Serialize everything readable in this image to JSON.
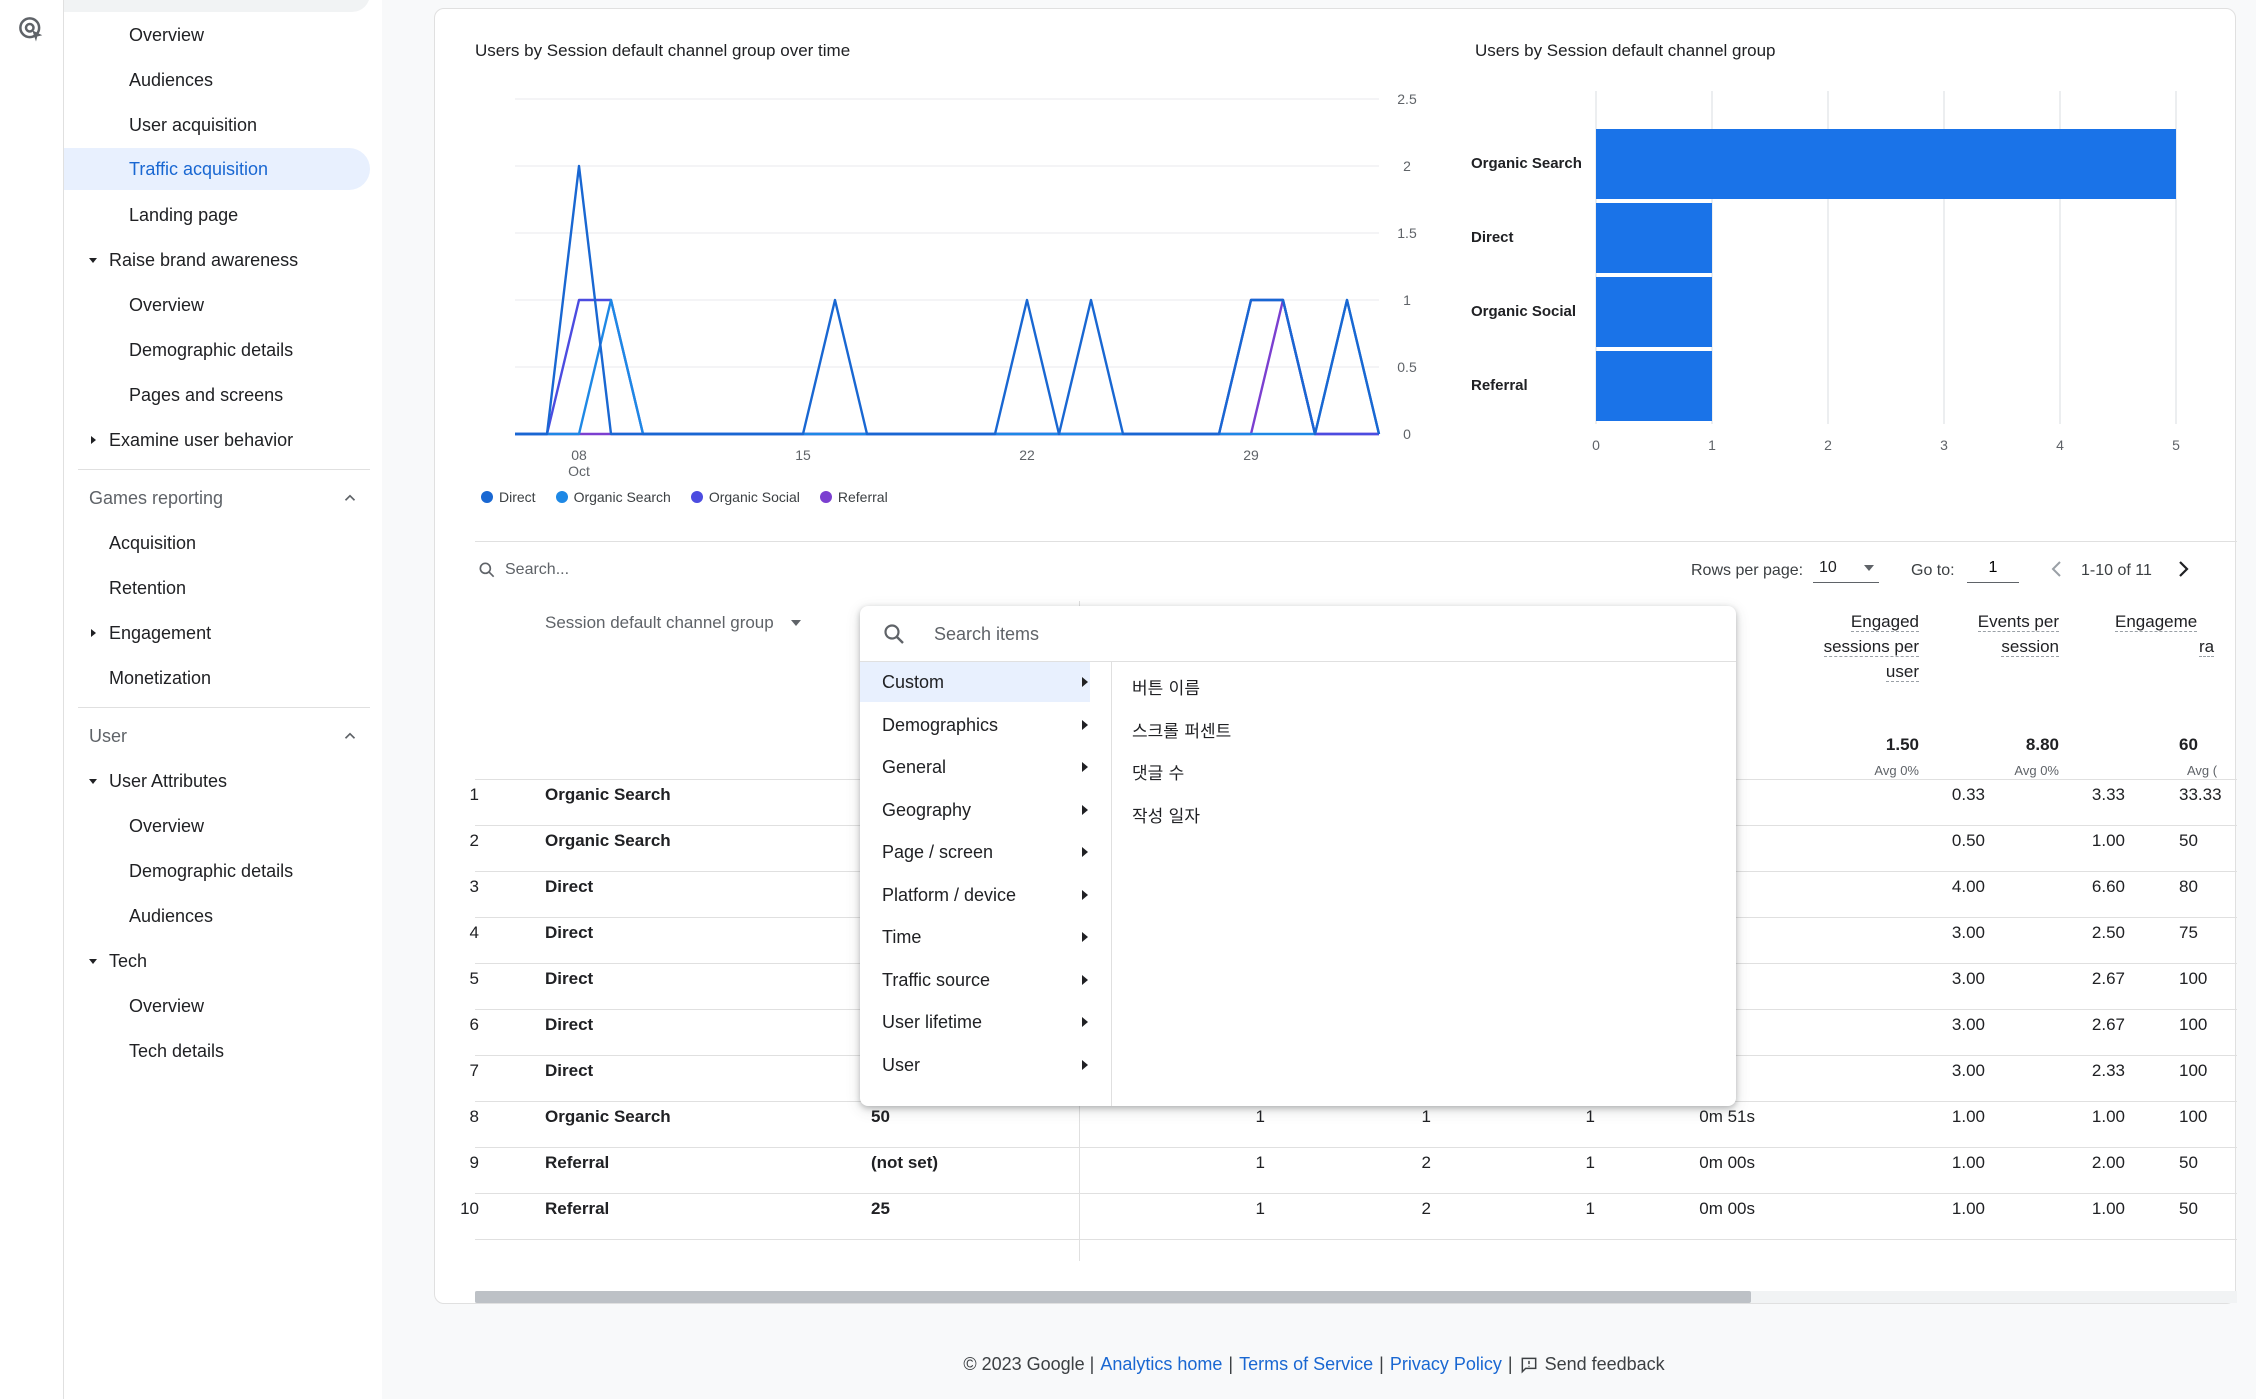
{
  "sidebar": {
    "items": [
      {
        "label": "Overview"
      },
      {
        "label": "Audiences"
      },
      {
        "label": "User acquisition"
      },
      {
        "label": "Traffic acquisition"
      },
      {
        "label": "Landing page"
      },
      {
        "label": "Raise brand awareness"
      },
      {
        "label": "Overview"
      },
      {
        "label": "Demographic details"
      },
      {
        "label": "Pages and screens"
      },
      {
        "label": "Examine user behavior"
      },
      {
        "label": "Acquisition"
      },
      {
        "label": "Retention"
      },
      {
        "label": "Engagement"
      },
      {
        "label": "Monetization"
      },
      {
        "label": "User Attributes"
      },
      {
        "label": "Overview"
      },
      {
        "label": "Demographic details"
      },
      {
        "label": "Audiences"
      },
      {
        "label": "Tech"
      },
      {
        "label": "Overview"
      },
      {
        "label": "Tech details"
      }
    ],
    "sections": {
      "games": "Games reporting",
      "user": "User"
    }
  },
  "line_chart": {
    "title": "Users by Session default channel group over time",
    "y_ticks": [
      "2.5",
      "2",
      "1.5",
      "1",
      "0.5",
      "0"
    ],
    "x_ticks": [
      {
        "day": "08",
        "month": "Oct"
      },
      {
        "day": "15",
        "month": ""
      },
      {
        "day": "22",
        "month": ""
      },
      {
        "day": "29",
        "month": ""
      }
    ],
    "legend": [
      "Direct",
      "Organic Search",
      "Organic Social",
      "Referral"
    ]
  },
  "bar_chart": {
    "title": "Users by Session default channel group",
    "categories": [
      "Organic Search",
      "Direct",
      "Organic Social",
      "Referral"
    ],
    "x_ticks": [
      "0",
      "1",
      "2",
      "3",
      "4",
      "5"
    ]
  },
  "chart_data": [
    {
      "type": "line",
      "title": "Users by Session default channel group over time",
      "x": [
        "Oct 6",
        "Oct 7",
        "Oct 8",
        "Oct 9",
        "Oct 10",
        "Oct 11",
        "Oct 12",
        "Oct 13",
        "Oct 14",
        "Oct 15",
        "Oct 16",
        "Oct 17",
        "Oct 18",
        "Oct 19",
        "Oct 20",
        "Oct 21",
        "Oct 22",
        "Oct 23",
        "Oct 24",
        "Oct 25",
        "Oct 26",
        "Oct 27",
        "Oct 28",
        "Oct 29",
        "Oct 30",
        "Oct 31",
        "Nov 1",
        "Nov 2"
      ],
      "series": [
        {
          "name": "Direct",
          "values": [
            0,
            0,
            2,
            0,
            0,
            0,
            0,
            0,
            0,
            0,
            1,
            0,
            0,
            0,
            0,
            0,
            1,
            0,
            1,
            0,
            0,
            0,
            0,
            1,
            1,
            0,
            1,
            0
          ]
        },
        {
          "name": "Organic Search",
          "values": [
            0,
            0,
            0,
            1,
            0,
            0,
            0,
            0,
            0,
            0,
            0,
            0,
            0,
            0,
            0,
            0,
            0,
            0,
            0,
            0,
            0,
            0,
            0,
            0,
            0,
            0,
            1,
            0
          ]
        },
        {
          "name": "Organic Social",
          "values": [
            0,
            0,
            1,
            1,
            0,
            0,
            0,
            0,
            0,
            0,
            0,
            0,
            0,
            0,
            0,
            0,
            0,
            0,
            0,
            0,
            0,
            0,
            0,
            1,
            1,
            0,
            0,
            0
          ]
        },
        {
          "name": "Referral",
          "values": [
            0,
            0,
            0,
            0,
            0,
            0,
            0,
            0,
            0,
            0,
            0,
            0,
            0,
            0,
            0,
            0,
            0,
            0,
            0,
            0,
            0,
            0,
            0,
            0,
            1,
            0,
            0,
            0
          ]
        }
      ],
      "ylim": [
        0,
        2.5
      ],
      "colors": {
        "Direct": "#1967d2",
        "Organic Search": "#1e88e5",
        "Organic Social": "#4c4ce0",
        "Referral": "#7b3fd0"
      }
    },
    {
      "type": "bar",
      "title": "Users by Session default channel group",
      "categories": [
        "Organic Search",
        "Direct",
        "Organic Social",
        "Referral"
      ],
      "values": [
        5,
        1,
        1,
        1
      ],
      "xlim": [
        0,
        5
      ],
      "color": "#1a73e8"
    }
  ],
  "toolbar": {
    "search_placeholder": "Search...",
    "rows_per_page_label": "Rows per page:",
    "rows_per_page_value": "10",
    "goto_label": "Go to:",
    "goto_value": "1",
    "pager_text": "1-10 of 11"
  },
  "table": {
    "dimension_header": "Session default channel group",
    "metric_headers": [
      {
        "lines": [
          "Engaged",
          "sessions per",
          "user"
        ],
        "total": "1.50",
        "avg": "Avg 0%"
      },
      {
        "lines": [
          "Events per",
          "session"
        ],
        "total": "8.80",
        "avg": "Avg 0%"
      },
      {
        "lines": [
          "Engageme",
          "ra"
        ],
        "total": "60",
        "avg": "Avg ("
      }
    ],
    "rows": [
      {
        "num": "1",
        "channel": "Organic Search",
        "c1": "",
        "m1": "",
        "m2": "",
        "m3": "",
        "m4": "",
        "eps": "0.33",
        "evs": "3.33",
        "er": "33.33"
      },
      {
        "num": "2",
        "channel": "Organic Search",
        "c1": "",
        "m1": "",
        "m2": "",
        "m3": "",
        "m4": "",
        "eps": "0.50",
        "evs": "1.00",
        "er": "50"
      },
      {
        "num": "3",
        "channel": "Direct",
        "c1": "",
        "m1": "",
        "m2": "",
        "m3": "",
        "m4": "",
        "eps": "4.00",
        "evs": "6.60",
        "er": "80"
      },
      {
        "num": "4",
        "channel": "Direct",
        "c1": "",
        "m1": "",
        "m2": "",
        "m3": "",
        "m4": "",
        "eps": "3.00",
        "evs": "2.50",
        "er": "75"
      },
      {
        "num": "5",
        "channel": "Direct",
        "c1": "",
        "m1": "",
        "m2": "",
        "m3": "",
        "m4": "",
        "eps": "3.00",
        "evs": "2.67",
        "er": "100"
      },
      {
        "num": "6",
        "channel": "Direct",
        "c1": "",
        "m1": "",
        "m2": "",
        "m3": "",
        "m4": "",
        "eps": "3.00",
        "evs": "2.67",
        "er": "100"
      },
      {
        "num": "7",
        "channel": "Direct",
        "c1": "",
        "m1": "",
        "m2": "",
        "m3": "",
        "m4": "",
        "eps": "3.00",
        "evs": "2.33",
        "er": "100"
      },
      {
        "num": "8",
        "channel": "Organic Search",
        "c1": "50",
        "m1": "1",
        "m2": "1",
        "m3": "1",
        "m4": "0m 51s",
        "eps": "1.00",
        "evs": "1.00",
        "er": "100"
      },
      {
        "num": "9",
        "channel": "Referral",
        "c1": "(not set)",
        "m1": "1",
        "m2": "2",
        "m3": "1",
        "m4": "0m 00s",
        "eps": "1.00",
        "evs": "2.00",
        "er": "50"
      },
      {
        "num": "10",
        "channel": "Referral",
        "c1": "25",
        "m1": "1",
        "m2": "2",
        "m3": "1",
        "m4": "0m 00s",
        "eps": "1.00",
        "evs": "1.00",
        "er": "50"
      }
    ]
  },
  "dropdown": {
    "search_placeholder": "Search items",
    "categories": [
      "Custom",
      "Demographics",
      "General",
      "Geography",
      "Page / screen",
      "Platform / device",
      "Time",
      "Traffic source",
      "User lifetime",
      "User"
    ],
    "selected": "Custom",
    "options": [
      "버튼 이름",
      "스크롤 퍼센트",
      "댓글 수",
      "작성 일자"
    ]
  },
  "footer": {
    "copyright": "© 2023 Google |",
    "analytics_home": "Analytics home",
    "sep1": "|",
    "terms": "Terms of Service",
    "sep2": "|",
    "privacy": "Privacy Policy",
    "sep3": "|",
    "feedback": "Send feedback"
  }
}
